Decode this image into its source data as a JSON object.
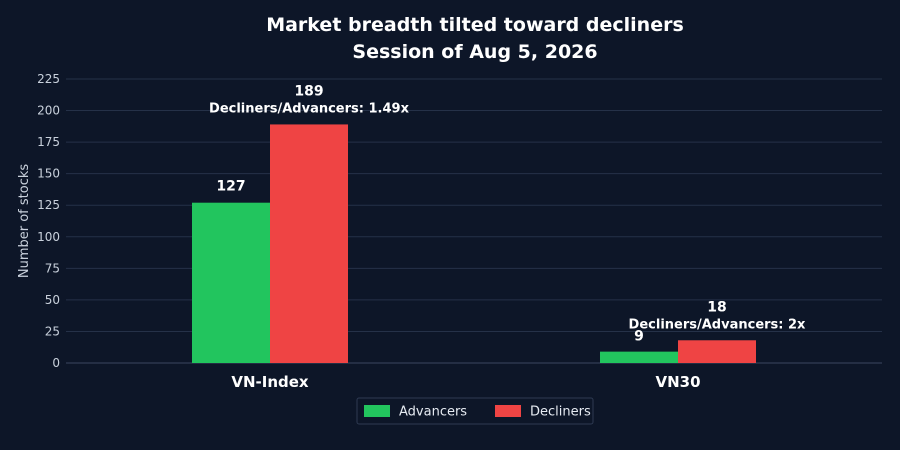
{
  "chart_data": {
    "type": "bar",
    "title": "Market breadth tilted toward decliners",
    "subtitle": "Session of Aug 5, 2026",
    "xlabel": "",
    "ylabel": "Number of stocks",
    "ylim": [
      0,
      225
    ],
    "yticks": [
      0,
      25,
      50,
      75,
      100,
      125,
      150,
      175,
      200,
      225
    ],
    "categories": [
      "VN-Index",
      "VN30"
    ],
    "series": [
      {
        "name": "Advancers",
        "values": [
          127,
          9
        ],
        "color": "#22c55e"
      },
      {
        "name": "Decliners",
        "values": [
          189,
          18
        ],
        "color": "#ef4444"
      }
    ],
    "annotations": [
      "Decliners/Advancers: 1.49x",
      "Decliners/Advancers: 2x"
    ],
    "grid": true,
    "legend_position": "bottom-center"
  },
  "colors": {
    "background": "#0d1628",
    "advancers": "#22c55e",
    "decliners": "#ef4444"
  }
}
